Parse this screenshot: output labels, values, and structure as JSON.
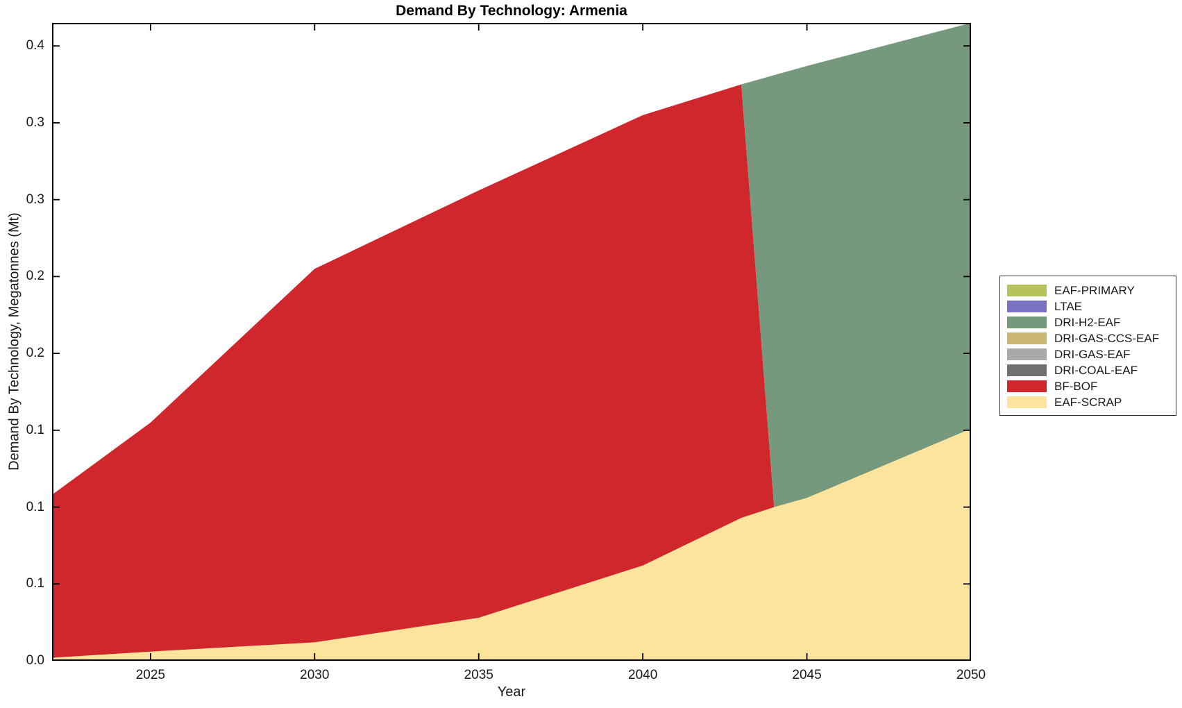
{
  "title": "Demand By Technology: Armenia",
  "axes": {
    "xlabel": "Year",
    "ylabel": "Demand By Technology, Megatonnes (Mt)",
    "xlim": [
      2022,
      2050
    ],
    "ylim": [
      0,
      0.415
    ],
    "x_ticks": [
      {
        "value": 2025,
        "label": "2025"
      },
      {
        "value": 2030,
        "label": "2030"
      },
      {
        "value": 2035,
        "label": "2035"
      },
      {
        "value": 2040,
        "label": "2040"
      },
      {
        "value": 2045,
        "label": "2045"
      },
      {
        "value": 2050,
        "label": "2050"
      }
    ],
    "y_ticks": [
      {
        "value": 0.0,
        "label": "0.0"
      },
      {
        "value": 0.05,
        "label": "0.1"
      },
      {
        "value": 0.1,
        "label": "0.1"
      },
      {
        "value": 0.15,
        "label": "0.1"
      },
      {
        "value": 0.2,
        "label": "0.2"
      },
      {
        "value": 0.25,
        "label": "0.2"
      },
      {
        "value": 0.3,
        "label": "0.3"
      },
      {
        "value": 0.35,
        "label": "0.3"
      },
      {
        "value": 0.4,
        "label": "0.4"
      }
    ]
  },
  "chart_data": {
    "type": "area",
    "stacked": true,
    "title": "Demand By Technology: Armenia",
    "xlabel": "Year",
    "ylabel": "Demand By Technology, Megatonnes (Mt)",
    "xlim": [
      2022,
      2050
    ],
    "ylim": [
      0,
      0.415
    ],
    "grid": false,
    "legend_position": "outside-right",
    "x": [
      2022,
      2025,
      2030,
      2035,
      2040,
      2043,
      2044,
      2045,
      2050
    ],
    "series": [
      {
        "name": "EAF-SCRAP",
        "color": "#fde49c",
        "values": [
          0.002,
          0.006,
          0.012,
          0.028,
          0.062,
          0.093,
          0.1,
          0.106,
          0.151
        ]
      },
      {
        "name": "BF-BOF",
        "color": "#d0272d",
        "values": [
          0.106,
          0.149,
          0.243,
          0.278,
          0.293,
          0.282,
          0.0,
          0.0,
          0.0
        ]
      },
      {
        "name": "DRI-COAL-EAF",
        "color": "#707070",
        "values": [
          0,
          0,
          0,
          0,
          0,
          0,
          0,
          0,
          0
        ]
      },
      {
        "name": "DRI-GAS-EAF",
        "color": "#a9a9a9",
        "values": [
          0,
          0,
          0,
          0,
          0,
          0,
          0,
          0,
          0
        ]
      },
      {
        "name": "DRI-GAS-CCS-EAF",
        "color": "#c9b773",
        "values": [
          0,
          0,
          0,
          0,
          0,
          0,
          0,
          0,
          0
        ]
      },
      {
        "name": "DRI-H2-EAF",
        "color": "#76997d",
        "values": [
          0.0,
          0.0,
          0.0,
          0.0,
          0.0,
          0.0,
          0.281,
          0.281,
          0.264
        ]
      },
      {
        "name": "LTAE",
        "color": "#7a71c5",
        "values": [
          0,
          0,
          0,
          0,
          0,
          0,
          0,
          0,
          0
        ]
      },
      {
        "name": "EAF-PRIMARY",
        "color": "#b6c35c",
        "values": [
          0,
          0,
          0,
          0,
          0,
          0,
          0,
          0,
          0
        ]
      }
    ]
  },
  "legend": {
    "items": [
      {
        "label": "EAF-PRIMARY",
        "color": "#b6c35c"
      },
      {
        "label": "LTAE",
        "color": "#7a71c5"
      },
      {
        "label": "DRI-H2-EAF",
        "color": "#76997d"
      },
      {
        "label": "DRI-GAS-CCS-EAF",
        "color": "#c9b773"
      },
      {
        "label": "DRI-GAS-EAF",
        "color": "#a9a9a9"
      },
      {
        "label": "DRI-COAL-EAF",
        "color": "#707070"
      },
      {
        "label": "BF-BOF",
        "color": "#d0272d"
      },
      {
        "label": "EAF-SCRAP",
        "color": "#fde49c"
      }
    ]
  }
}
